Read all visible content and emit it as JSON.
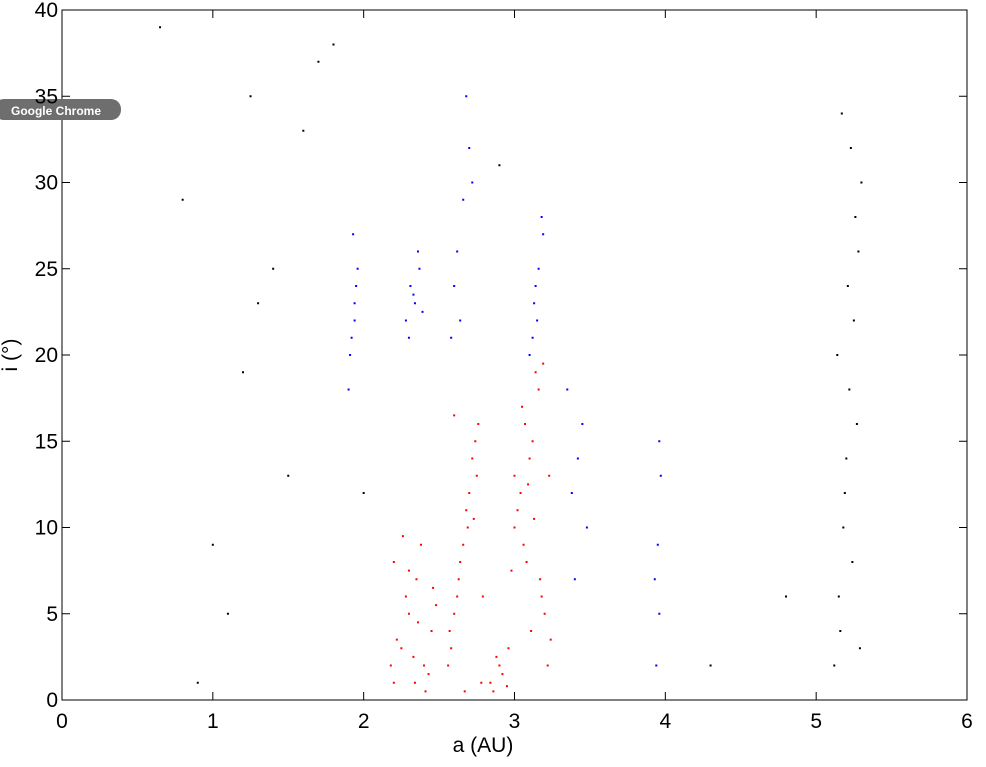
{
  "chart_data": {
    "type": "scatter",
    "xlabel": "a   (AU)",
    "ylabel": "i (°)",
    "xlim": [
      0,
      6
    ],
    "xticks": [
      0,
      1,
      2,
      3,
      4,
      5,
      6
    ],
    "ylim": [
      0,
      40
    ],
    "yticks": [
      0,
      5,
      10,
      15,
      20,
      25,
      30,
      35,
      40
    ],
    "grid": false,
    "series": [
      {
        "color": "#ff0000",
        "x": [
          2.2,
          2.25,
          2.3,
          2.35,
          2.4,
          2.45,
          2.2,
          2.28,
          2.33,
          2.38,
          2.43,
          2.48,
          2.22,
          2.3,
          2.36,
          2.41,
          2.46,
          2.18,
          2.26,
          2.34,
          2.56,
          2.6,
          2.64,
          2.68,
          2.72,
          2.76,
          2.58,
          2.62,
          2.66,
          2.7,
          2.74,
          2.78,
          2.57,
          2.63,
          2.69,
          2.75,
          2.6,
          2.67,
          2.73,
          2.79,
          2.84,
          2.88,
          2.92,
          2.96,
          3.0,
          3.04,
          3.08,
          3.12,
          3.16,
          3.2,
          3.02,
          3.06,
          3.1,
          3.14,
          3.18,
          3.22,
          3.05,
          3.11,
          3.17,
          3.23,
          2.86,
          2.9,
          2.95,
          3.0,
          3.07,
          3.13,
          3.19,
          3.24,
          2.98,
          3.09
        ],
        "values": [
          1,
          3,
          5,
          7,
          2,
          4,
          8,
          6,
          2.5,
          9,
          1.5,
          5.5,
          3.5,
          7.5,
          4.5,
          0.5,
          6.5,
          2,
          9.5,
          1,
          2,
          5,
          8,
          11,
          14,
          16,
          3,
          6,
          9,
          12,
          15,
          1,
          4,
          7,
          10,
          13,
          16.5,
          0.5,
          10.5,
          6,
          1,
          2.5,
          1.5,
          3,
          10,
          12,
          8,
          15,
          18,
          5,
          11,
          9,
          14,
          19,
          6,
          2,
          17,
          4,
          7,
          13,
          0.5,
          2,
          0.8,
          13,
          16,
          10.5,
          19.5,
          3.5,
          7.5,
          12.5
        ]
      },
      {
        "color": "#0000ff",
        "x": [
          1.9,
          1.92,
          1.94,
          1.96,
          1.93,
          1.91,
          1.95,
          1.94,
          2.28,
          2.31,
          2.34,
          2.37,
          2.3,
          2.36,
          2.33,
          2.39,
          2.58,
          2.62,
          2.66,
          2.7,
          2.64,
          2.68,
          2.6,
          2.72,
          3.1,
          3.13,
          3.16,
          3.19,
          3.12,
          3.18,
          3.15,
          3.14,
          3.35,
          3.42,
          3.48,
          3.4,
          3.45,
          3.38,
          3.94,
          3.96,
          3.95,
          3.97,
          3.93,
          3.96
        ],
        "values": [
          18,
          21,
          23,
          25,
          27,
          20,
          24,
          22,
          22,
          24,
          23,
          25,
          21,
          26,
          23.5,
          22.5,
          21,
          26,
          29,
          32,
          22,
          35,
          24,
          30,
          20,
          23,
          25,
          27,
          21,
          28,
          22,
          24,
          18,
          14,
          10,
          7,
          16,
          12,
          2,
          5,
          9,
          13,
          7,
          15
        ]
      },
      {
        "color": "#000000",
        "x": [
          5.12,
          5.15,
          5.18,
          5.2,
          5.22,
          5.25,
          5.28,
          5.3,
          5.16,
          5.24,
          5.19,
          5.27,
          5.14,
          5.21,
          5.26,
          5.23,
          5.17,
          5.29,
          0.65,
          0.8,
          1.0,
          1.2,
          1.4,
          1.6,
          1.8,
          1.1,
          1.5,
          0.9,
          1.3,
          1.7,
          2.0,
          1.25,
          4.3,
          4.8,
          2.9
        ],
        "values": [
          2,
          6,
          10,
          14,
          18,
          22,
          26,
          30,
          4,
          8,
          12,
          16,
          20,
          24,
          28,
          32,
          34,
          3,
          39,
          29,
          9,
          19,
          25,
          33,
          38,
          5,
          13,
          1,
          23,
          37,
          12,
          35,
          2,
          6,
          31
        ]
      }
    ]
  },
  "overlay": {
    "tooltip": "Google Chrome"
  }
}
